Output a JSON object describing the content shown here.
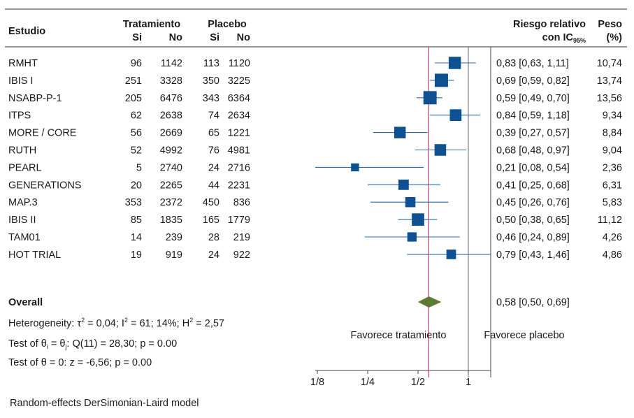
{
  "chart_data": {
    "type": "forest",
    "headers": {
      "study": "Estudio",
      "treatment": "Tratamiento",
      "placebo": "Placebo",
      "yes": "Si",
      "no": "No",
      "rr_line1": "Riesgo relativo",
      "rr_line2_prefix": "con IC",
      "rr_line2_sub": "95%",
      "weight_line1": "Peso",
      "weight_line2": "(%)"
    },
    "studies": [
      {
        "name": "RMHT",
        "t_yes": "96",
        "t_no": "1142",
        "p_yes": "113",
        "p_no": "1120",
        "rr": 0.83,
        "lo": 0.63,
        "hi": 1.11,
        "ci_text": "0,83 [0,63, 1,11]",
        "weight": 10.74,
        "weight_text": "10,74"
      },
      {
        "name": "IBIS I",
        "t_yes": "251",
        "t_no": "3328",
        "p_yes": "350",
        "p_no": "3225",
        "rr": 0.69,
        "lo": 0.59,
        "hi": 0.82,
        "ci_text": "0,69 [0,59, 0,82]",
        "weight": 13.74,
        "weight_text": "13,74"
      },
      {
        "name": "NSABP-P-1",
        "t_yes": "205",
        "t_no": "6476",
        "p_yes": "343",
        "p_no": "6364",
        "rr": 0.59,
        "lo": 0.49,
        "hi": 0.7,
        "ci_text": "0,59 [0,49, 0,70]",
        "weight": 13.56,
        "weight_text": "13,56"
      },
      {
        "name": "ITPS",
        "t_yes": "62",
        "t_no": "2638",
        "p_yes": "74",
        "p_no": "2634",
        "rr": 0.84,
        "lo": 0.59,
        "hi": 1.18,
        "ci_text": "0,84 [0,59, 1,18]",
        "weight": 9.34,
        "weight_text": "9,34"
      },
      {
        "name": "MORE / CORE",
        "t_yes": "56",
        "t_no": "2669",
        "p_yes": "65",
        "p_no": "1221",
        "rr": 0.39,
        "lo": 0.27,
        "hi": 0.57,
        "ci_text": "0,39 [0,27, 0,57]",
        "weight": 8.84,
        "weight_text": "8,84"
      },
      {
        "name": "RUTH",
        "t_yes": "52",
        "t_no": "4992",
        "p_yes": "76",
        "p_no": "4981",
        "rr": 0.68,
        "lo": 0.48,
        "hi": 0.97,
        "ci_text": "0,68 [0,48, 0,97]",
        "weight": 9.04,
        "weight_text": "9,04"
      },
      {
        "name": "PEARL",
        "t_yes": "5",
        "t_no": "2740",
        "p_yes": "24",
        "p_no": "2716",
        "rr": 0.21,
        "lo": 0.08,
        "hi": 0.54,
        "ci_text": "0,21 [0,08, 0,54]",
        "weight": 2.36,
        "weight_text": "2,36"
      },
      {
        "name": "GENERATIONS",
        "t_yes": "20",
        "t_no": "2265",
        "p_yes": "44",
        "p_no": "2231",
        "rr": 0.41,
        "lo": 0.25,
        "hi": 0.68,
        "ci_text": "0,41 [0,25, 0,68]",
        "weight": 6.31,
        "weight_text": "6,31"
      },
      {
        "name": "MAP.3",
        "t_yes": "353",
        "t_no": "2372",
        "p_yes": "450",
        "p_no": "836",
        "rr": 0.45,
        "lo": 0.26,
        "hi": 0.76,
        "ci_text": "0,45 [0,26, 0,76]",
        "weight": 5.83,
        "weight_text": "5,83"
      },
      {
        "name": "IBIS II",
        "t_yes": "85",
        "t_no": "1835",
        "p_yes": "165",
        "p_no": "1779",
        "rr": 0.5,
        "lo": 0.38,
        "hi": 0.65,
        "ci_text": "0,50 [0,38, 0,65]",
        "weight": 11.12,
        "weight_text": "11,12"
      },
      {
        "name": "TAM01",
        "t_yes": "14",
        "t_no": "239",
        "p_yes": "28",
        "p_no": "219",
        "rr": 0.46,
        "lo": 0.24,
        "hi": 0.89,
        "ci_text": "0,46 [0,24, 0,89]",
        "weight": 4.26,
        "weight_text": "4,26"
      },
      {
        "name": "HOT TRIAL",
        "t_yes": "19",
        "t_no": "919",
        "p_yes": "24",
        "p_no": "922",
        "rr": 0.79,
        "lo": 0.43,
        "hi": 1.46,
        "ci_text": "0,79 [0,43, 1,46]",
        "weight": 4.86,
        "weight_text": "4,86"
      }
    ],
    "overall": {
      "name": "Overall",
      "rr": 0.58,
      "lo": 0.5,
      "hi": 0.69,
      "ci_text": "0,58 [0,50, 0,69]"
    },
    "stats": {
      "heterogeneity": "Heterogeneity: τ² = 0,04; I² = 61; 14%; H² = 2,57",
      "test_theta_i": "Test of θᵢ = θⱼ: Q(11) = 28,30; p = 0.00",
      "test_theta": "Test of θ = 0: z = -6,56; p = 0.00"
    },
    "favors_treatment": "Favorece tratamiento",
    "favors_placebo": "Favorece placebo",
    "x_scale": "log",
    "x_ticks": [
      {
        "value": 0.125,
        "label": "1/8"
      },
      {
        "value": 0.25,
        "label": "1/4"
      },
      {
        "value": 0.5,
        "label": "1/2"
      },
      {
        "value": 1,
        "label": "1"
      }
    ],
    "null_line": 1,
    "overall_line": 0.58,
    "footnote": "Random-effects DerSimonian-Laird model",
    "colors": {
      "marker": "#0d5193",
      "ci_line": "#2a6aab",
      "diamond": "#5c7a32",
      "overall_line": "#d43a5a",
      "null_line": "#6b6b6b"
    }
  }
}
